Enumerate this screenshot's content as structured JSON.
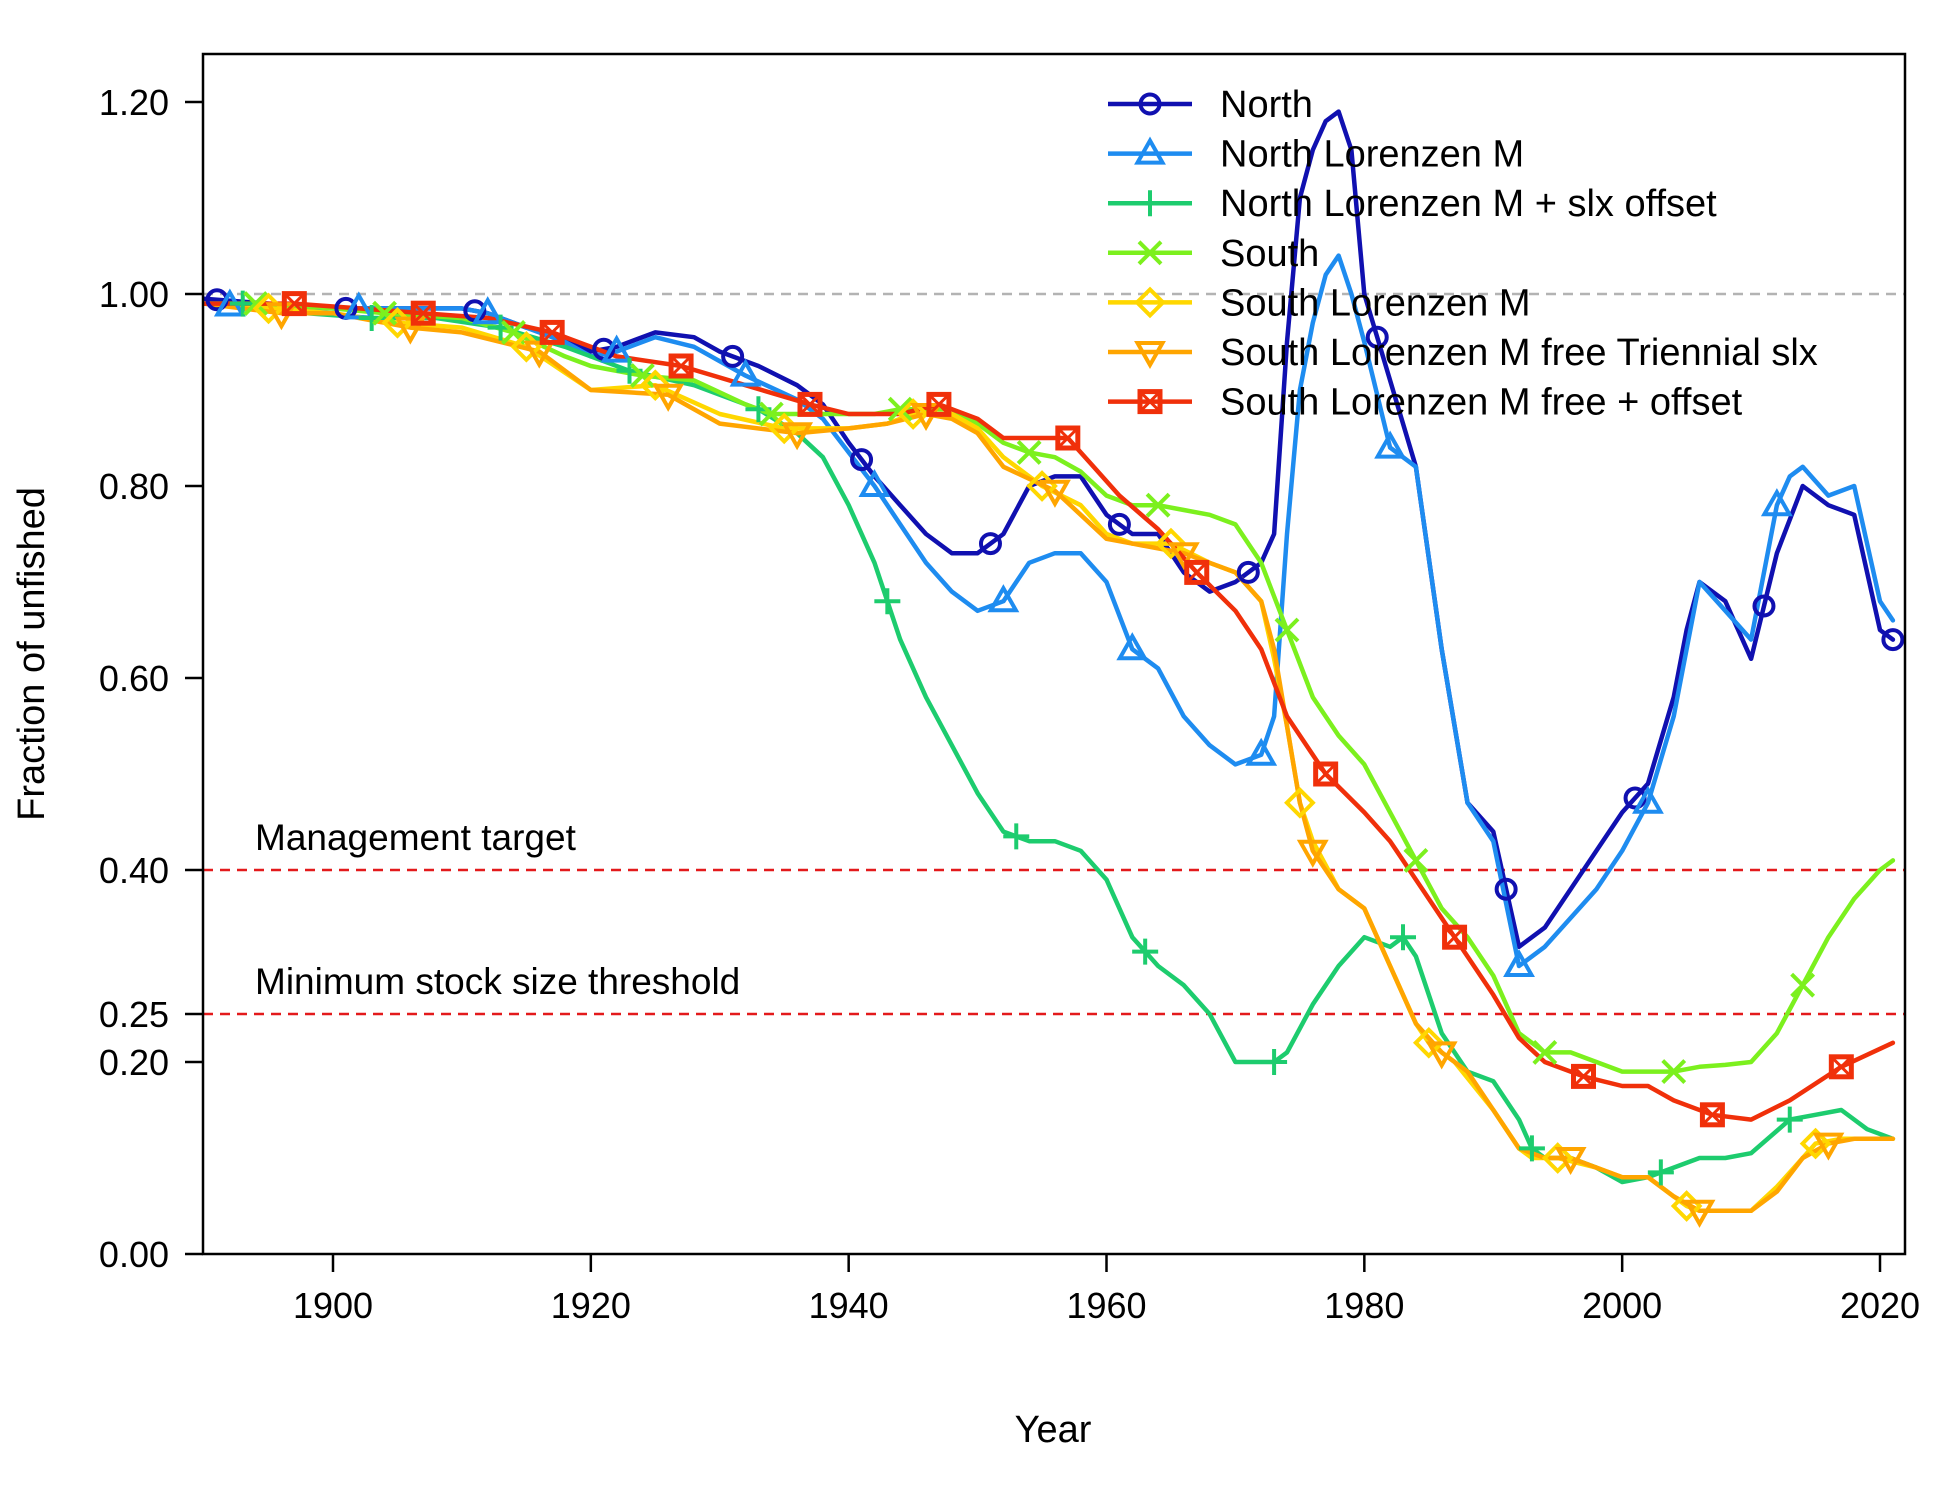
{
  "chart_data": {
    "type": "line",
    "title": "",
    "xlabel": "Year",
    "ylabel": "Fraction of unfished",
    "xlim": [
      1890,
      2021
    ],
    "ylim": [
      0,
      1.25
    ],
    "x_ticks": [
      1900,
      1920,
      1940,
      1960,
      1980,
      2000,
      2020
    ],
    "x_tick_labels": [
      "1900",
      "1920",
      "1940",
      "1960",
      "1980",
      "2000",
      "2020"
    ],
    "y_ticks": [
      0,
      0.2,
      0.25,
      0.4,
      0.6,
      0.8,
      1.0,
      1.2
    ],
    "y_tick_labels": [
      "0.00",
      "0.20",
      "0.25",
      "0.40",
      "0.60",
      "0.80",
      "1.00",
      "1.20"
    ],
    "grid": false,
    "legend_position": "top-right",
    "reference_lines": [
      {
        "y": 1.0,
        "color": "#b3b3b3",
        "label": ""
      },
      {
        "y": 0.4,
        "color": "#e31a1c",
        "label": "Management target"
      },
      {
        "y": 0.25,
        "color": "#e31a1c",
        "label": "Minimum stock size threshold"
      }
    ],
    "series": [
      {
        "name": "North",
        "color": "#1010b0",
        "marker": "circle",
        "x": [
          1890,
          1895,
          1900,
          1905,
          1910,
          1912,
          1915,
          1918,
          1920,
          1922,
          1925,
          1928,
          1930,
          1933,
          1936,
          1938,
          1940,
          1942,
          1944,
          1946,
          1948,
          1950,
          1952,
          1954,
          1956,
          1958,
          1960,
          1962,
          1964,
          1966,
          1968,
          1970,
          1972,
          1973,
          1974,
          1975,
          1976,
          1977,
          1978,
          1979,
          1980,
          1982,
          1984,
          1986,
          1988,
          1990,
          1992,
          1994,
          1996,
          1998,
          2000,
          2002,
          2004,
          2005,
          2006,
          2008,
          2010,
          2012,
          2014,
          2016,
          2018,
          2020,
          2021
        ],
        "y": [
          0.995,
          0.99,
          0.985,
          0.985,
          0.985,
          0.98,
          0.965,
          0.955,
          0.94,
          0.945,
          0.96,
          0.955,
          0.94,
          0.925,
          0.905,
          0.885,
          0.845,
          0.81,
          0.78,
          0.75,
          0.73,
          0.73,
          0.75,
          0.8,
          0.81,
          0.81,
          0.77,
          0.75,
          0.75,
          0.71,
          0.69,
          0.7,
          0.72,
          0.75,
          0.95,
          1.1,
          1.15,
          1.18,
          1.19,
          1.15,
          1.0,
          0.91,
          0.82,
          0.63,
          0.47,
          0.44,
          0.32,
          0.34,
          0.38,
          0.42,
          0.46,
          0.49,
          0.58,
          0.65,
          0.7,
          0.68,
          0.62,
          0.73,
          0.8,
          0.78,
          0.77,
          0.65,
          0.64
        ],
        "markers_x": [
          1891,
          1901,
          1911,
          1921,
          1931,
          1941,
          1951,
          1961,
          1971,
          1981,
          1991,
          2001,
          2011,
          2021
        ]
      },
      {
        "name": "North Lorenzen M",
        "color": "#1e8cf0",
        "marker": "triangle",
        "x": [
          1890,
          1895,
          1900,
          1905,
          1910,
          1912,
          1915,
          1918,
          1920,
          1922,
          1925,
          1928,
          1932,
          1936,
          1938,
          1940,
          1942,
          1944,
          1946,
          1948,
          1950,
          1952,
          1954,
          1956,
          1958,
          1960,
          1962,
          1964,
          1966,
          1968,
          1970,
          1972,
          1973,
          1974,
          1975,
          1976,
          1977,
          1978,
          1979,
          1980,
          1982,
          1984,
          1986,
          1988,
          1990,
          1992,
          1994,
          1996,
          1998,
          2000,
          2002,
          2004,
          2006,
          2008,
          2010,
          2012,
          2013,
          2014,
          2016,
          2018,
          2020,
          2021
        ],
        "y": [
          0.99,
          0.985,
          0.985,
          0.985,
          0.985,
          0.98,
          0.965,
          0.95,
          0.935,
          0.94,
          0.955,
          0.945,
          0.915,
          0.89,
          0.87,
          0.835,
          0.8,
          0.76,
          0.72,
          0.69,
          0.67,
          0.68,
          0.72,
          0.73,
          0.73,
          0.7,
          0.63,
          0.61,
          0.56,
          0.53,
          0.51,
          0.52,
          0.56,
          0.75,
          0.9,
          0.97,
          1.02,
          1.04,
          1.0,
          0.95,
          0.84,
          0.82,
          0.63,
          0.47,
          0.43,
          0.3,
          0.32,
          0.35,
          0.38,
          0.42,
          0.47,
          0.56,
          0.7,
          0.67,
          0.64,
          0.78,
          0.81,
          0.82,
          0.79,
          0.8,
          0.68,
          0.66
        ],
        "markers_x": [
          1892,
          1902,
          1912,
          1922,
          1932,
          1942,
          1952,
          1962,
          1972,
          1982,
          1992,
          2002,
          2012
        ]
      },
      {
        "name": "North Lorenzen M + slx offset",
        "color": "#1dcc6e",
        "marker": "plus",
        "x": [
          1890,
          1893,
          1898,
          1903,
          1908,
          1913,
          1918,
          1923,
          1928,
          1933,
          1936,
          1938,
          1940,
          1942,
          1944,
          1946,
          1948,
          1950,
          1952,
          1954,
          1956,
          1958,
          1960,
          1962,
          1964,
          1966,
          1968,
          1970,
          1972,
          1973,
          1974,
          1976,
          1978,
          1980,
          1982,
          1983,
          1984,
          1986,
          1988,
          1990,
          1992,
          1993,
          1994,
          1996,
          1998,
          2000,
          2002,
          2003,
          2004,
          2006,
          2008,
          2010,
          2013,
          2015,
          2017,
          2019,
          2021
        ],
        "y": [
          0.99,
          0.99,
          0.98,
          0.975,
          0.975,
          0.965,
          0.945,
          0.92,
          0.905,
          0.88,
          0.855,
          0.83,
          0.78,
          0.72,
          0.64,
          0.58,
          0.53,
          0.48,
          0.44,
          0.43,
          0.43,
          0.42,
          0.39,
          0.33,
          0.3,
          0.28,
          0.25,
          0.2,
          0.2,
          0.2,
          0.21,
          0.26,
          0.3,
          0.33,
          0.32,
          0.33,
          0.31,
          0.23,
          0.19,
          0.18,
          0.14,
          0.11,
          0.1,
          0.1,
          0.09,
          0.075,
          0.08,
          0.085,
          0.09,
          0.1,
          0.1,
          0.105,
          0.14,
          0.145,
          0.15,
          0.13,
          0.12
        ],
        "markers_x": [
          1893,
          1903,
          1913,
          1923,
          1933,
          1943,
          1953,
          1963,
          1973,
          1983,
          1993,
          2003,
          2013
        ]
      },
      {
        "name": "South",
        "color": "#7cf01e",
        "marker": "x",
        "x": [
          1890,
          1894,
          1900,
          1904,
          1910,
          1914,
          1918,
          1920,
          1924,
          1928,
          1932,
          1934,
          1937,
          1940,
          1942,
          1944,
          1946,
          1948,
          1950,
          1952,
          1954,
          1956,
          1958,
          1960,
          1962,
          1964,
          1966,
          1968,
          1970,
          1972,
          1974,
          1976,
          1978,
          1980,
          1982,
          1984,
          1986,
          1988,
          1990,
          1992,
          1994,
          1996,
          1998,
          2000,
          2002,
          2004,
          2006,
          2008,
          2010,
          2012,
          2014,
          2016,
          2018,
          2020,
          2021
        ],
        "y": [
          0.99,
          0.99,
          0.985,
          0.98,
          0.975,
          0.96,
          0.935,
          0.925,
          0.915,
          0.91,
          0.885,
          0.875,
          0.875,
          0.875,
          0.875,
          0.88,
          0.88,
          0.88,
          0.865,
          0.845,
          0.835,
          0.83,
          0.815,
          0.79,
          0.78,
          0.78,
          0.775,
          0.77,
          0.76,
          0.72,
          0.65,
          0.58,
          0.54,
          0.51,
          0.46,
          0.41,
          0.36,
          0.33,
          0.29,
          0.23,
          0.21,
          0.21,
          0.2,
          0.19,
          0.19,
          0.19,
          0.195,
          0.197,
          0.2,
          0.23,
          0.28,
          0.33,
          0.37,
          0.4,
          0.41
        ],
        "markers_x": [
          1894,
          1904,
          1914,
          1924,
          1934,
          1944,
          1954,
          1964,
          1974,
          1984,
          1994,
          2004,
          2014
        ]
      },
      {
        "name": "South Lorenzen M",
        "color": "#ffd700",
        "marker": "diamond",
        "x": [
          1890,
          1895,
          1900,
          1905,
          1910,
          1915,
          1920,
          1925,
          1930,
          1935,
          1940,
          1943,
          1945,
          1948,
          1950,
          1952,
          1955,
          1958,
          1960,
          1962,
          1965,
          1968,
          1970,
          1972,
          1973,
          1974,
          1975,
          1976,
          1978,
          1980,
          1982,
          1984,
          1985,
          1987,
          1990,
          1992,
          1993,
          1995,
          1998,
          2000,
          2002,
          2004,
          2005,
          2006,
          2008,
          2010,
          2012,
          2014,
          2015,
          2017,
          2021
        ],
        "y": [
          0.99,
          0.985,
          0.98,
          0.97,
          0.965,
          0.945,
          0.9,
          0.905,
          0.875,
          0.86,
          0.86,
          0.865,
          0.875,
          0.875,
          0.86,
          0.83,
          0.8,
          0.78,
          0.75,
          0.74,
          0.74,
          0.72,
          0.71,
          0.68,
          0.62,
          0.55,
          0.47,
          0.43,
          0.38,
          0.36,
          0.3,
          0.24,
          0.22,
          0.2,
          0.15,
          0.11,
          0.1,
          0.1,
          0.09,
          0.08,
          0.08,
          0.06,
          0.05,
          0.045,
          0.045,
          0.045,
          0.07,
          0.1,
          0.115,
          0.12,
          0.12
        ],
        "markers_x": [
          1895,
          1905,
          1915,
          1925,
          1935,
          1945,
          1955,
          1965,
          1975,
          1985,
          1995,
          2005,
          2015
        ]
      },
      {
        "name": "South Lorenzen M free Triennial slx",
        "color": "#ffa500",
        "marker": "triangle-down",
        "x": [
          1890,
          1896,
          1900,
          1906,
          1910,
          1916,
          1920,
          1926,
          1930,
          1936,
          1940,
          1943,
          1946,
          1948,
          1950,
          1952,
          1956,
          1958,
          1960,
          1962,
          1966,
          1968,
          1970,
          1972,
          1973,
          1974,
          1975,
          1976,
          1978,
          1980,
          1982,
          1984,
          1986,
          1988,
          1990,
          1992,
          1994,
          1996,
          1998,
          2000,
          2002,
          2004,
          2006,
          2008,
          2010,
          2012,
          2014,
          2016,
          2018,
          2021
        ],
        "y": [
          0.99,
          0.98,
          0.98,
          0.965,
          0.96,
          0.94,
          0.9,
          0.895,
          0.865,
          0.855,
          0.86,
          0.865,
          0.875,
          0.87,
          0.855,
          0.82,
          0.795,
          0.77,
          0.745,
          0.74,
          0.73,
          0.72,
          0.71,
          0.68,
          0.63,
          0.55,
          0.47,
          0.42,
          0.38,
          0.36,
          0.3,
          0.24,
          0.21,
          0.19,
          0.15,
          0.11,
          0.1,
          0.1,
          0.09,
          0.08,
          0.08,
          0.06,
          0.045,
          0.045,
          0.045,
          0.065,
          0.1,
          0.115,
          0.12,
          0.12
        ],
        "markers_x": [
          1896,
          1906,
          1916,
          1926,
          1936,
          1946,
          1956,
          1966,
          1976,
          1986,
          1996,
          2006,
          2016
        ]
      },
      {
        "name": "South Lorenzen M free + offset",
        "color": "#f0300a",
        "marker": "square",
        "x": [
          1890,
          1897,
          1902,
          1907,
          1912,
          1917,
          1922,
          1927,
          1932,
          1937,
          1940,
          1944,
          1947,
          1950,
          1952,
          1954,
          1957,
          1959,
          1961,
          1964,
          1967,
          1970,
          1972,
          1974,
          1977,
          1980,
          1982,
          1984,
          1987,
          1990,
          1992,
          1994,
          1997,
          2000,
          2002,
          2004,
          2007,
          2010,
          2013,
          2017,
          2021
        ],
        "y": [
          0.99,
          0.99,
          0.985,
          0.98,
          0.975,
          0.96,
          0.935,
          0.925,
          0.905,
          0.885,
          0.875,
          0.875,
          0.885,
          0.87,
          0.85,
          0.85,
          0.85,
          0.82,
          0.79,
          0.755,
          0.71,
          0.67,
          0.63,
          0.56,
          0.5,
          0.46,
          0.43,
          0.39,
          0.33,
          0.27,
          0.225,
          0.2,
          0.185,
          0.175,
          0.175,
          0.16,
          0.145,
          0.14,
          0.16,
          0.195,
          0.22
        ],
        "markers_x": [
          1897,
          1907,
          1917,
          1927,
          1937,
          1947,
          1957,
          1967,
          1977,
          1987,
          1997,
          2007,
          2017
        ]
      }
    ]
  }
}
